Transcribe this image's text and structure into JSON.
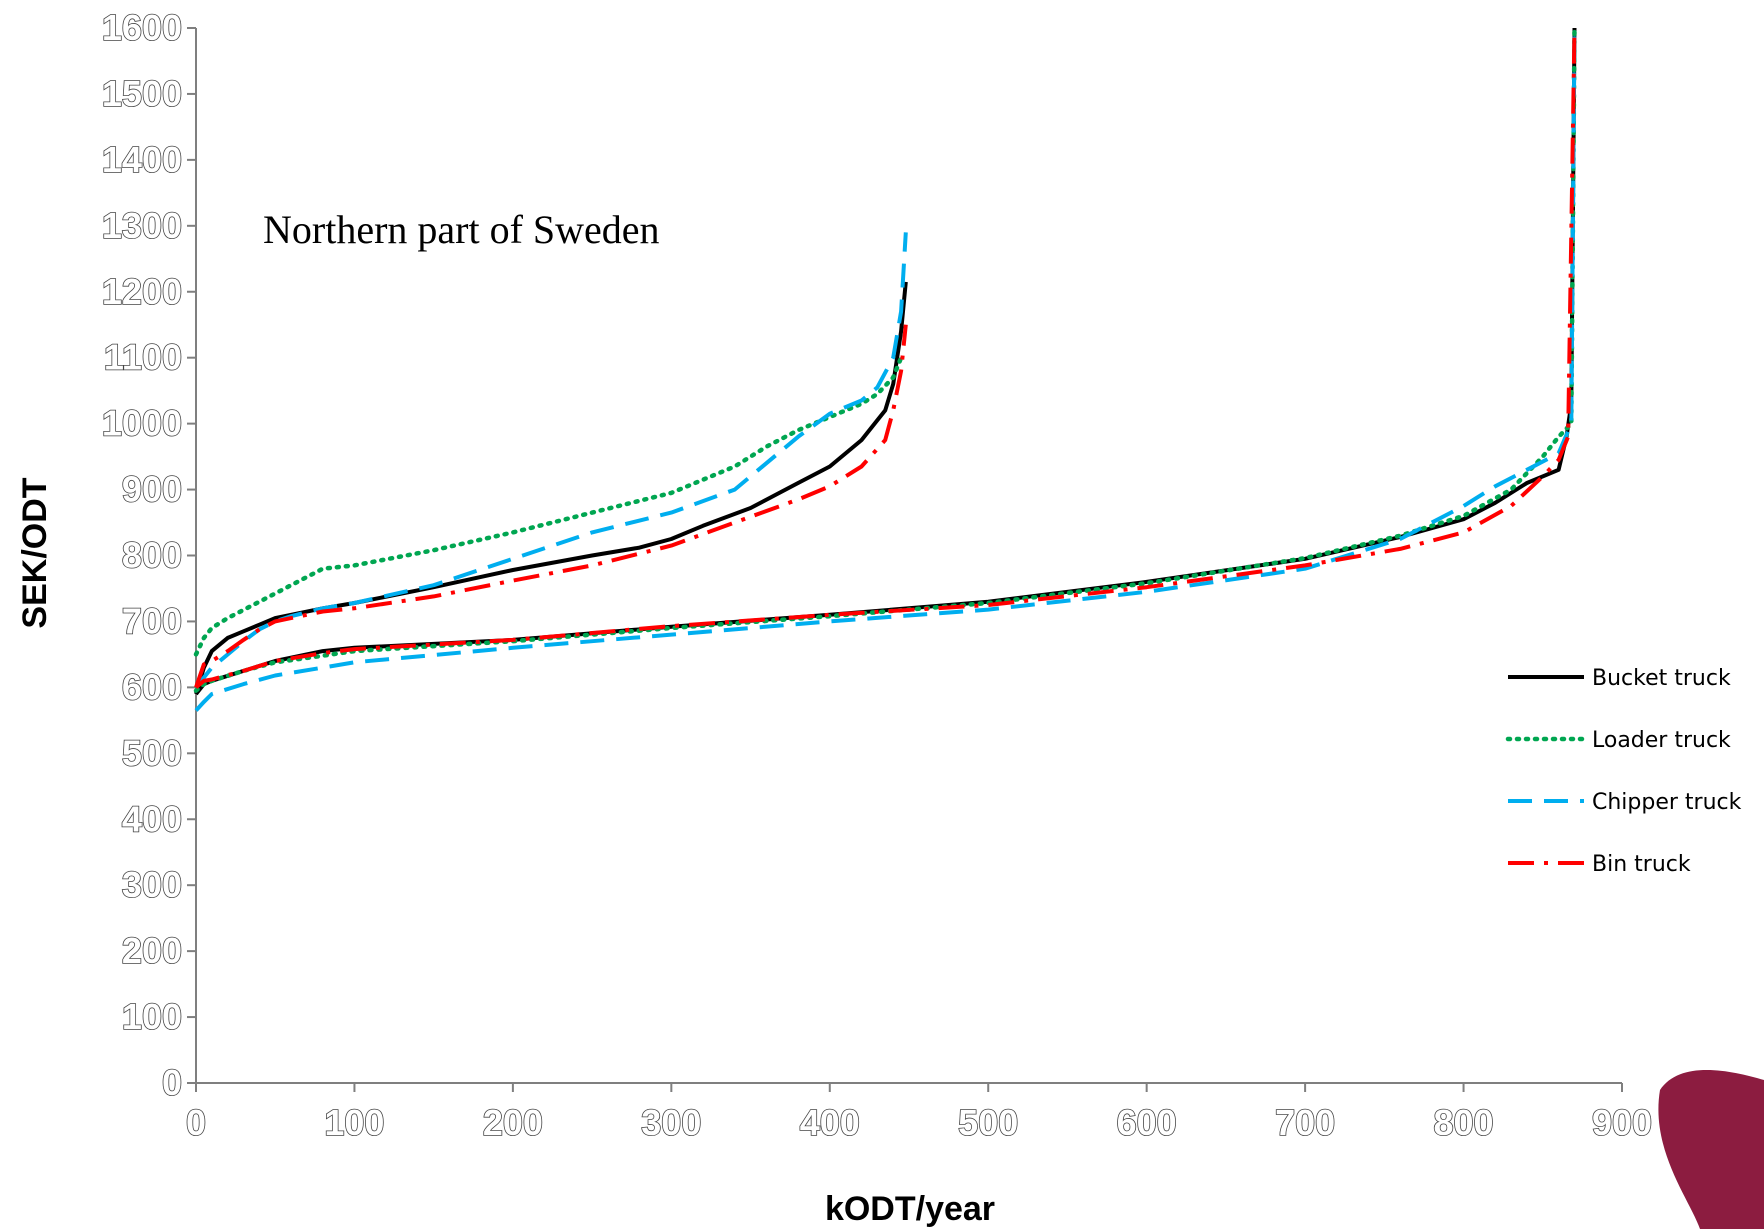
{
  "chart_data": {
    "type": "line",
    "title": "",
    "annotation": "Northern part of Sweden",
    "xlabel": "kODT/year",
    "ylabel": "SEK/ODT",
    "xlim": [
      0,
      900
    ],
    "ylim": [
      0,
      1600
    ],
    "x_ticks": [
      0,
      100,
      200,
      300,
      400,
      500,
      600,
      700,
      800,
      900
    ],
    "y_ticks": [
      0,
      100,
      200,
      300,
      400,
      500,
      600,
      700,
      800,
      900,
      1000,
      1100,
      1200,
      1300,
      1400,
      1500,
      1600
    ],
    "grid": false,
    "legend_position": "right",
    "colors": {
      "Bucket truck": "#000000",
      "Loader truck": "#00a651",
      "Chipper truck": "#00aeef",
      "Bin truck": "#ff0000"
    },
    "line_styles": {
      "Bucket truck": "solid",
      "Loader truck": "dotted",
      "Chipper truck": "dashed",
      "Bin truck": "dash-dot"
    },
    "curve_groups": [
      "upper",
      "lower"
    ],
    "series": [
      {
        "name": "Bucket truck",
        "upper": {
          "x": [
            0,
            5,
            10,
            20,
            30,
            40,
            50,
            60,
            80,
            100,
            150,
            200,
            250,
            280,
            300,
            320,
            350,
            380,
            400,
            420,
            430,
            435,
            440,
            445,
            448
          ],
          "y": [
            590,
            630,
            655,
            675,
            685,
            695,
            705,
            710,
            720,
            728,
            752,
            778,
            800,
            812,
            825,
            845,
            872,
            910,
            935,
            975,
            1005,
            1020,
            1060,
            1140,
            1215
          ]
        },
        "lower": {
          "x": [
            0,
            5,
            10,
            30,
            50,
            80,
            100,
            200,
            300,
            400,
            500,
            600,
            700,
            760,
            800,
            820,
            840,
            860,
            865,
            868,
            870
          ],
          "y": [
            590,
            605,
            610,
            625,
            640,
            655,
            660,
            672,
            692,
            710,
            730,
            760,
            795,
            828,
            855,
            880,
            910,
            930,
            980,
            1030,
            1600
          ]
        }
      },
      {
        "name": "Loader truck",
        "upper": {
          "x": [
            0,
            5,
            10,
            20,
            40,
            60,
            80,
            100,
            150,
            200,
            250,
            300,
            340,
            360,
            380,
            400,
            420,
            430,
            440,
            445
          ],
          "y": [
            650,
            675,
            690,
            705,
            730,
            755,
            780,
            785,
            808,
            835,
            865,
            895,
            935,
            965,
            990,
            1010,
            1030,
            1045,
            1070,
            1100
          ]
        },
        "lower": {
          "x": [
            0,
            5,
            10,
            30,
            50,
            80,
            100,
            200,
            300,
            400,
            500,
            600,
            700,
            760,
            800,
            830,
            850,
            860,
            868,
            870
          ],
          "y": [
            595,
            605,
            610,
            625,
            638,
            648,
            655,
            670,
            690,
            708,
            728,
            758,
            796,
            830,
            860,
            900,
            950,
            980,
            1000,
            1600
          ]
        }
      },
      {
        "name": "Chipper truck",
        "upper": {
          "x": [
            0,
            5,
            10,
            20,
            30,
            40,
            50,
            60,
            80,
            100,
            150,
            200,
            250,
            300,
            340,
            360,
            380,
            400,
            420,
            430,
            440,
            445,
            448
          ],
          "y": [
            600,
            615,
            630,
            650,
            670,
            688,
            700,
            708,
            720,
            728,
            755,
            795,
            835,
            865,
            900,
            940,
            980,
            1015,
            1035,
            1055,
            1100,
            1170,
            1290
          ]
        },
        "lower": {
          "x": [
            0,
            5,
            10,
            30,
            50,
            80,
            100,
            200,
            300,
            400,
            500,
            600,
            700,
            760,
            800,
            820,
            840,
            860,
            868,
            870
          ],
          "y": [
            565,
            578,
            590,
            605,
            618,
            630,
            638,
            660,
            680,
            700,
            718,
            745,
            780,
            825,
            875,
            905,
            930,
            955,
            1000,
            1600
          ]
        }
      },
      {
        "name": "Bin truck",
        "upper": {
          "x": [
            0,
            5,
            10,
            20,
            30,
            40,
            50,
            60,
            80,
            100,
            150,
            200,
            250,
            300,
            340,
            380,
            400,
            420,
            435,
            440,
            445,
            448
          ],
          "y": [
            600,
            635,
            640,
            655,
            672,
            688,
            700,
            705,
            715,
            720,
            738,
            762,
            785,
            815,
            850,
            885,
            905,
            935,
            975,
            1020,
            1080,
            1150
          ]
        },
        "lower": {
          "x": [
            0,
            5,
            10,
            30,
            50,
            80,
            100,
            200,
            300,
            400,
            500,
            600,
            700,
            760,
            800,
            830,
            850,
            860,
            866,
            870
          ],
          "y": [
            600,
            610,
            612,
            625,
            640,
            652,
            658,
            672,
            693,
            710,
            725,
            752,
            785,
            810,
            835,
            875,
            920,
            945,
            980,
            1600
          ]
        }
      }
    ]
  }
}
